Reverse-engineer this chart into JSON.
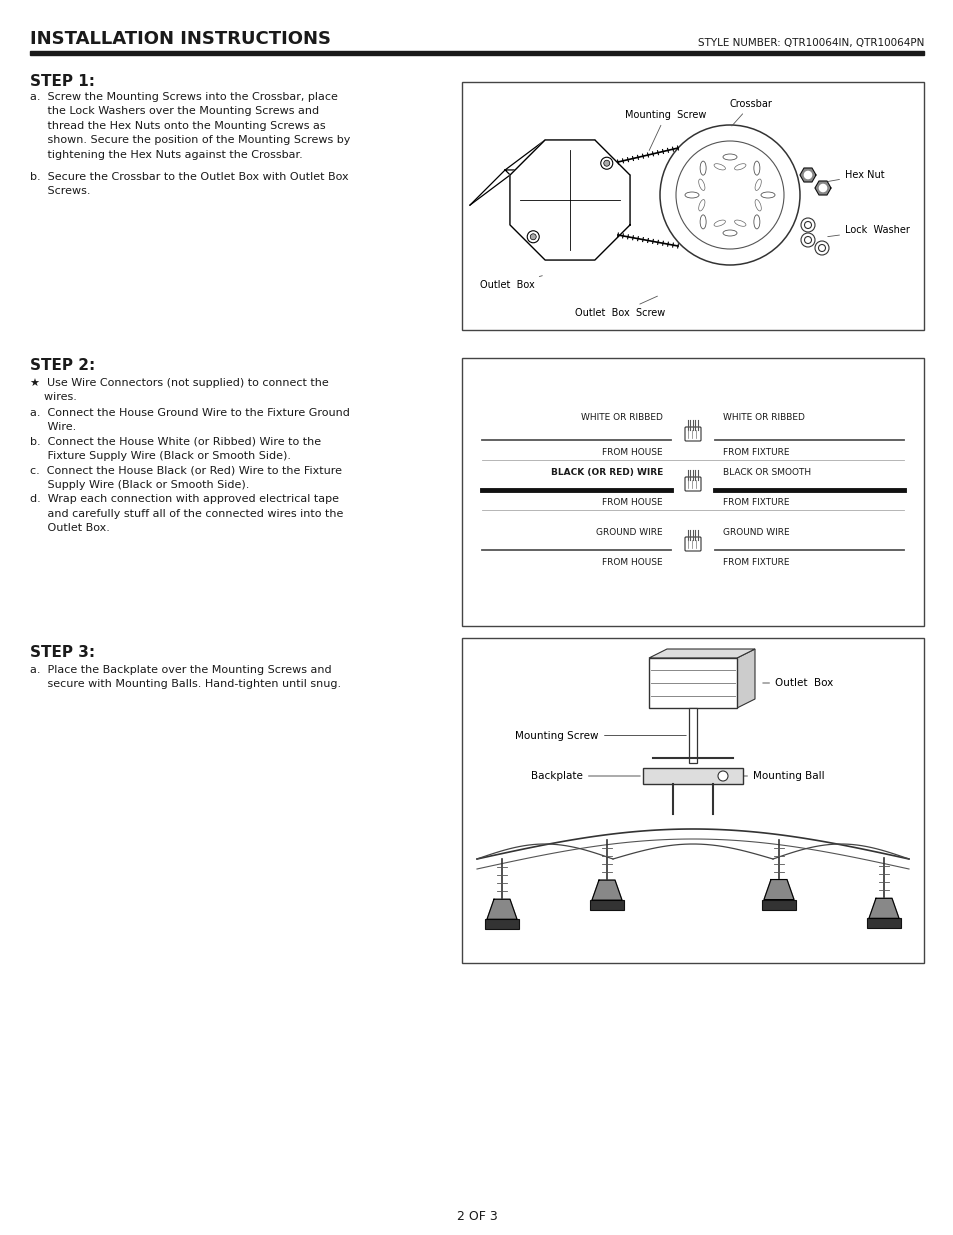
{
  "title": "INSTALLATION INSTRUCTIONS",
  "style_number": "STYLE NUMBER: QTR10064IN, QTR10064PN",
  "page_number": "2 OF 3",
  "bg_color": "#ffffff",
  "step1_title": "STEP 1:",
  "step2_title": "STEP 2:",
  "step3_title": "STEP 3:"
}
